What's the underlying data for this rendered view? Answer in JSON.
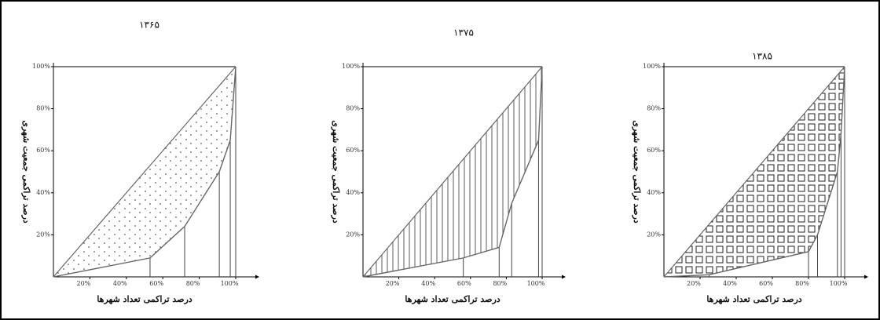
{
  "chart_data": [
    {
      "type": "line",
      "title": "۱۳۶۵",
      "x_label": "درصد تراکمی تعداد شهرها",
      "y_label": "درصد تراکمی جمعیت شهری",
      "x": [
        0,
        53,
        72,
        91,
        97,
        100
      ],
      "series": [
        {
          "color": "#666666",
          "values": [
            0,
            9,
            24,
            50,
            65,
            100
          ]
        }
      ],
      "fill_pattern": "dots",
      "xlim": [
        0,
        100
      ],
      "ylim": [
        0,
        100
      ],
      "xticks": [
        {
          "value": 20,
          "label": "20%"
        },
        {
          "value": 40,
          "label": "40%"
        },
        {
          "value": 60,
          "label": "60%"
        },
        {
          "value": 80,
          "label": "80%"
        },
        {
          "value": 100,
          "label": "100%"
        }
      ],
      "yticks": [
        {
          "value": 20,
          "label": "20%"
        },
        {
          "value": 40,
          "label": "40%"
        },
        {
          "value": 60,
          "label": "60%"
        },
        {
          "value": 80,
          "label": "80%"
        },
        {
          "value": 100,
          "label": "100%"
        }
      ]
    },
    {
      "type": "line",
      "title": "۱۳۷۵",
      "x_label": "درصد تراکمی تعداد شهرها",
      "y_label": "درصد تراکمی جمعیت شهری",
      "x": [
        0,
        56,
        76,
        83,
        98,
        100
      ],
      "series": [
        {
          "color": "#666666",
          "values": [
            0,
            9,
            14,
            35,
            65,
            100
          ]
        }
      ],
      "fill_pattern": "vlines",
      "xlim": [
        0,
        100
      ],
      "ylim": [
        0,
        100
      ],
      "xticks": [
        {
          "value": 20,
          "label": "20%"
        },
        {
          "value": 40,
          "label": "40%"
        },
        {
          "value": 60,
          "label": "60%"
        },
        {
          "value": 80,
          "label": "80%"
        },
        {
          "value": 100,
          "label": "100%"
        }
      ],
      "yticks": [
        {
          "value": 20,
          "label": "20%"
        },
        {
          "value": 40,
          "label": "40%"
        },
        {
          "value": 60,
          "label": "60%"
        },
        {
          "value": 80,
          "label": "80%"
        },
        {
          "value": 100,
          "label": "100%"
        }
      ]
    },
    {
      "type": "line",
      "title": "۱۳۸۵",
      "x_label": "درصد تراکمی تعداد شهرها",
      "y_label": "درصد تراکمی جمعیت شهری",
      "x": [
        0,
        25,
        80,
        85,
        96,
        98,
        100
      ],
      "series": [
        {
          "color": "#666666",
          "values": [
            0,
            1,
            12,
            20,
            50,
            68,
            100
          ]
        }
      ],
      "fill_pattern": "squares",
      "xlim": [
        0,
        100
      ],
      "ylim": [
        0,
        100
      ],
      "xticks": [
        {
          "value": 20,
          "label": "20%"
        },
        {
          "value": 40,
          "label": "40%"
        },
        {
          "value": 60,
          "label": "60%"
        },
        {
          "value": 80,
          "label": "80%"
        },
        {
          "value": 100,
          "label": "100%"
        }
      ],
      "yticks": [
        {
          "value": 20,
          "label": "20%"
        },
        {
          "value": 40,
          "label": "40%"
        },
        {
          "value": 60,
          "label": "60%"
        },
        {
          "value": 80,
          "label": "80%"
        },
        {
          "value": 100,
          "label": "100%"
        }
      ]
    }
  ]
}
